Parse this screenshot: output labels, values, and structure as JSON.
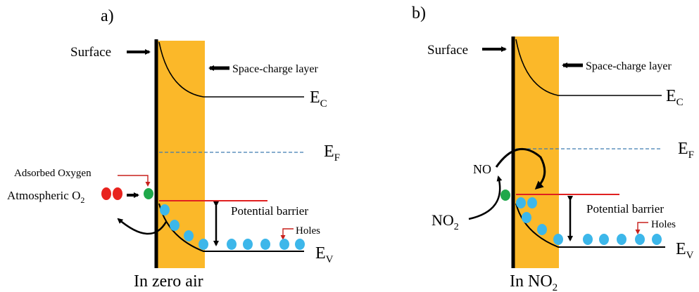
{
  "colors": {
    "space_charge": "#FBB829",
    "fermi": "#3E7CB1",
    "barrier": "#E02020",
    "hole": "#3DB7EA",
    "oxygen_adsorbed": "#1FA84A",
    "oxygen_atmospheric": "#E8231E",
    "arrow_red": "#C8201C"
  },
  "panel_a": {
    "tag": "a)",
    "surface_label": "Surface",
    "space_charge_label": "Space-charge layer",
    "ec_main": "E",
    "ec_sub": "C",
    "ef_main": "E",
    "ef_sub": "F",
    "ev_main": "E",
    "ev_sub": "V",
    "adsorbed_label": "Adsorbed Oxygen",
    "atmospheric_main": "Atmospheric O",
    "atmospheric_sub": "2",
    "barrier_label": "Potential barrier",
    "holes_label": "Holes",
    "caption": "In zero air"
  },
  "panel_b": {
    "tag": "b)",
    "surface_label": "Surface",
    "space_charge_label": "Space-charge layer",
    "ec_main": "E",
    "ec_sub": "C",
    "ef_main": "E",
    "ef_sub": "F",
    "ev_main": "E",
    "ev_sub": "V",
    "no_label": "NO",
    "no2_main": "NO",
    "no2_sub": "2",
    "barrier_label": "Potential barrier",
    "holes_label": "Holes",
    "caption_main": "In NO",
    "caption_sub": "2"
  }
}
